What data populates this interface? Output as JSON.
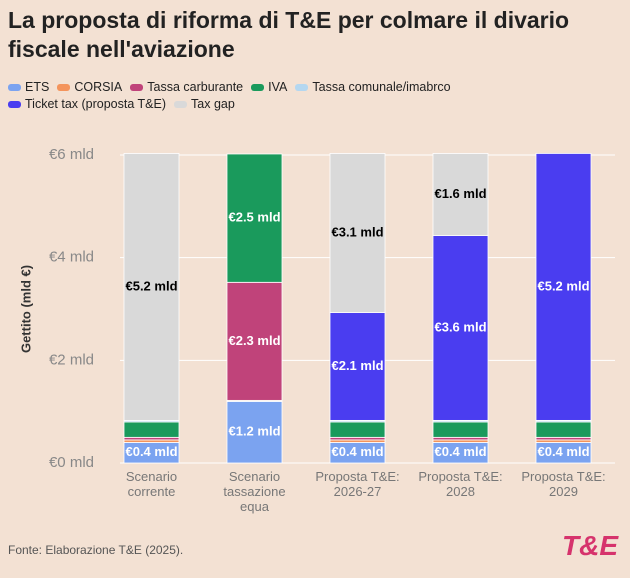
{
  "chart_data": {
    "type": "stacked-bar",
    "title": "La proposta di riforma di T&E per colmare il divario fiscale nell'aviazione",
    "ylabel": "Gettito (mld €)",
    "source": "Fonte: Elaborazione T&E (2025).",
    "logo": "T&E",
    "categories": [
      "Scenario corrente",
      "Scenario tassazione equa",
      "Proposta T&E: 2026-27",
      "Proposta T&E: 2028",
      "Proposta T&E: 2029"
    ],
    "ylim": [
      0,
      6
    ],
    "yticks": [
      {
        "value": 0,
        "label": "€0 mld"
      },
      {
        "value": 2,
        "label": "€2 mld"
      },
      {
        "value": 4,
        "label": "€4 mld"
      },
      {
        "value": 6,
        "label": "€6 mld"
      }
    ],
    "grid": true,
    "series": [
      {
        "name": "ETS",
        "color": "#7ba3f0",
        "label_color": "#ffffff",
        "values": [
          0.4,
          1.2,
          0.4,
          0.4,
          0.4
        ],
        "value_labels": [
          "€0.4 mld",
          "€1.2 mld",
          "€0.4 mld",
          "€0.4 mld",
          "€0.4 mld"
        ]
      },
      {
        "name": "CORSIA",
        "color": "#f4945c",
        "label_color": "#ffffff",
        "values": [
          0.05,
          0.02,
          0.05,
          0.05,
          0.05
        ]
      },
      {
        "name": "Tassa carburante",
        "color": "#c0437a",
        "label_color": "#ffffff",
        "values": [
          0.05,
          2.3,
          0.05,
          0.05,
          0.05
        ],
        "value_labels": [
          null,
          "€2.3 mld",
          null,
          null,
          null
        ]
      },
      {
        "name": "IVA",
        "color": "#1a9a5c",
        "label_color": "#ffffff",
        "values": [
          0.3,
          2.5,
          0.3,
          0.3,
          0.3
        ],
        "value_labels": [
          null,
          "€2.5 mld",
          null,
          null,
          null
        ]
      },
      {
        "name": "Tassa comunale/imabrco",
        "color": "#b4d7f0",
        "label_color": "#ffffff",
        "values": [
          0.03,
          0,
          0.03,
          0.03,
          0.03
        ]
      },
      {
        "name": "Ticket tax (proposta T&E)",
        "color": "#4a3df0",
        "label_color": "#ffffff",
        "values": [
          0,
          0,
          2.1,
          3.6,
          5.2
        ],
        "value_labels": [
          null,
          null,
          "€2.1 mld",
          "€3.6 mld",
          "€5.2 mld"
        ]
      },
      {
        "name": "Tax gap",
        "color": "#d9d9d9",
        "label_color": "#000000",
        "values": [
          5.2,
          0,
          3.1,
          1.6,
          0
        ],
        "value_labels": [
          "€5.2 mld",
          null,
          "€3.1 mld",
          "€1.6 mld",
          null
        ]
      }
    ]
  }
}
